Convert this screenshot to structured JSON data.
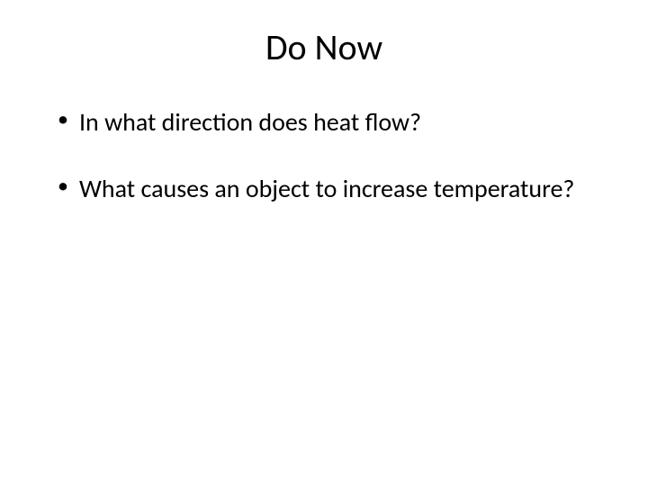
{
  "slide": {
    "title": "Do Now",
    "bullets": [
      "In what direction does heat flow?",
      "What causes an object to increase temperature?"
    ],
    "background_color": "#ffffff",
    "text_color": "#000000",
    "title_fontsize": 40,
    "body_fontsize": 28
  }
}
